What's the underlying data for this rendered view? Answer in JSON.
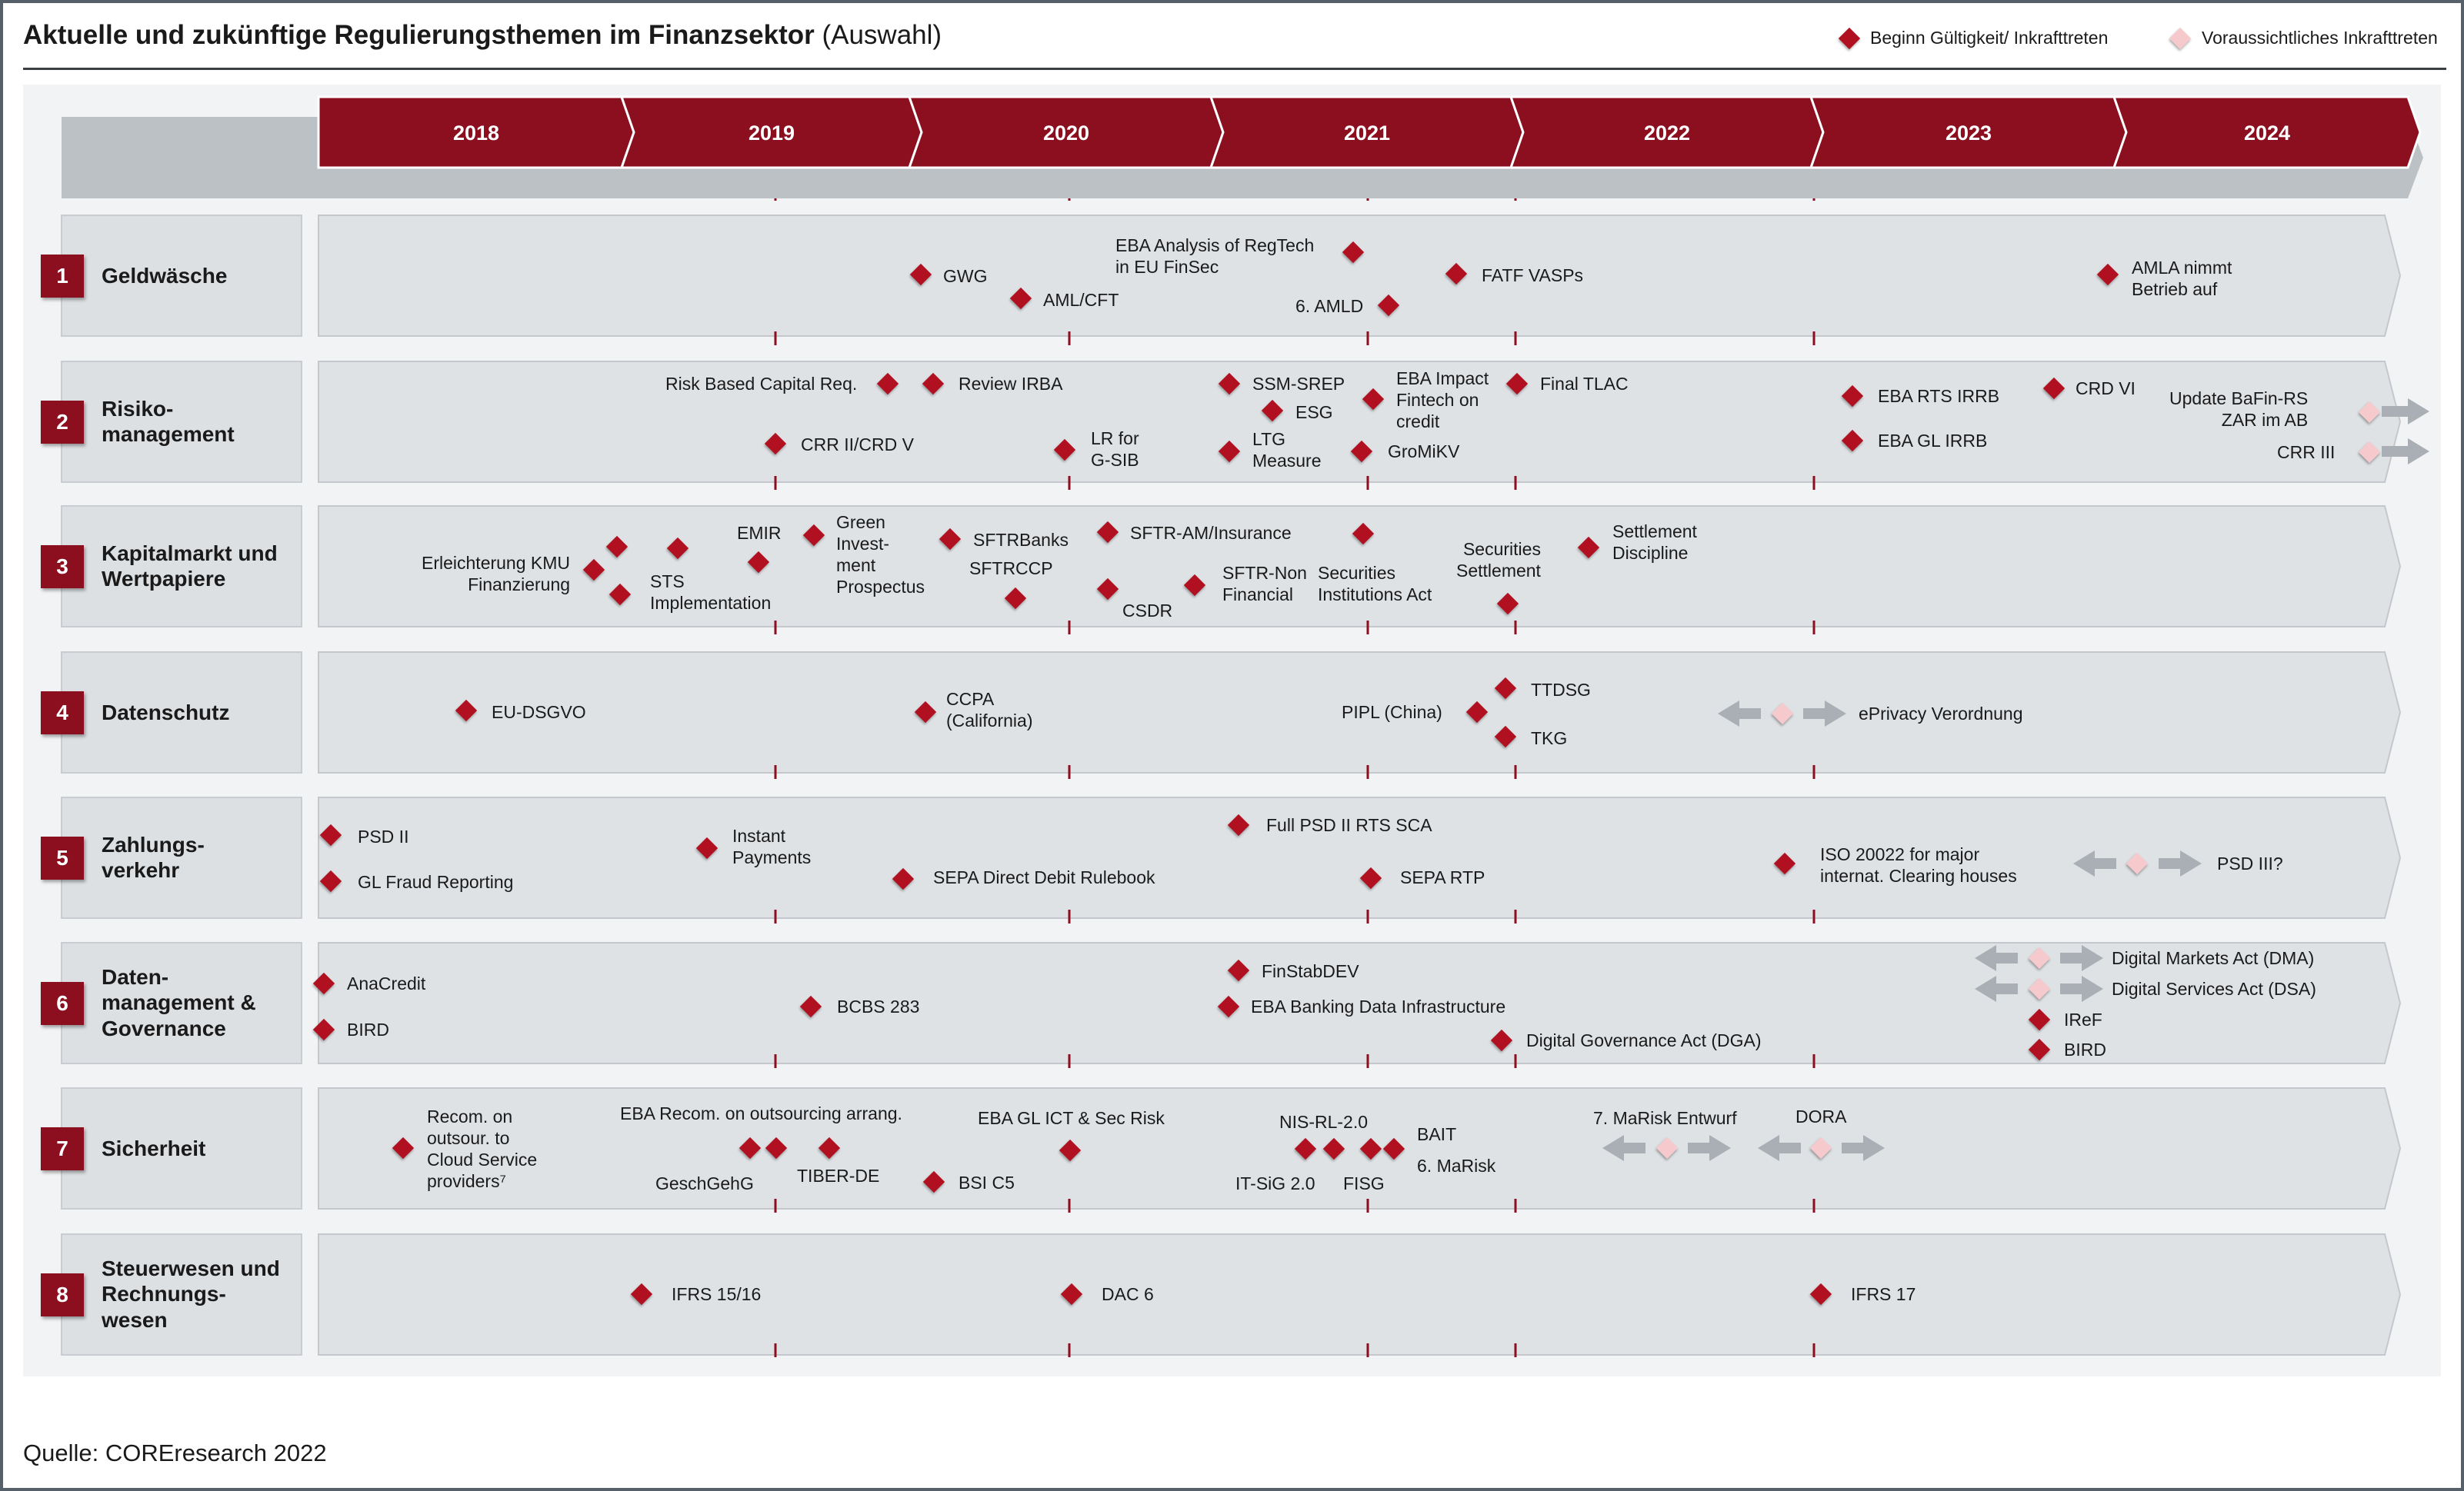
{
  "title": {
    "bold": "Aktuelle und zukünftige Regulierungsthemen im Finanzsektor",
    "normal": "(Auswahl)"
  },
  "legend": {
    "start": "Beginn Gültigkeit/ Inkrafttreten",
    "expected": "Voraussichtliches Inkrafttreten"
  },
  "colors": {
    "accent": "#8b0f1e",
    "diamond": "#b0101f",
    "diamond_light": "#f6c9cd",
    "lane": "#dde0e3",
    "arrow": "#a9afb5"
  },
  "years": [
    "2018",
    "2019",
    "2020",
    "2021",
    "2022",
    "2023",
    "2024"
  ],
  "categories": [
    {
      "num": "1",
      "label": "Geldwäsche"
    },
    {
      "num": "2",
      "label": "Risiko-\nmanagement"
    },
    {
      "num": "3",
      "label": "Kapitalmarkt und\nWertpapiere"
    },
    {
      "num": "4",
      "label": "Datenschutz"
    },
    {
      "num": "5",
      "label": "Zahlungs-\nverkehr"
    },
    {
      "num": "6",
      "label": "Daten-\nmanagement &\nGovernance"
    },
    {
      "num": "7",
      "label": "Sicherheit"
    },
    {
      "num": "8",
      "label": "Steuerwesen und\nRechnungs-\nwesen"
    }
  ],
  "events": {
    "geldwaesche": [
      "GWG",
      "AML/CFT",
      "EBA Analysis of RegTech\nin EU FinSec",
      "6. AMLD",
      "FATF VASPs",
      "AMLA nimmt\nBetrieb auf"
    ],
    "risiko": [
      "Risk Based Capital Req.",
      "Review IRBA",
      "CRR II/CRD V",
      "LR for\nG-SIB",
      "SSM-SREP",
      "ESG",
      "LTG\nMeasure",
      "EBA Impact\nFintech on\ncredit",
      "GroMiKV",
      "Final TLAC",
      "EBA RTS IRRB",
      "EBA GL IRRB",
      "CRD VI",
      "Update BaFin-RS\nZAR im AB",
      "CRR III"
    ],
    "kapitalmarkt": [
      "Erleichterung KMU\nFinanzierung",
      "STS\nImplementation",
      "EMIR",
      "Green\nInvest-\nment\nProspectus",
      "SFTRBanks",
      "SFTRCCP",
      "SFTR-AM/Insurance",
      "CSDR",
      "SFTR-Non\nFinancial",
      "Securities\nInstitutions Act",
      "Securities\nSettlement",
      "Settlement\nDiscipline"
    ],
    "datenschutz": [
      "EU-DSGVO",
      "CCPA\n(California)",
      "PIPL (China)",
      "TTDSG",
      "TKG",
      "ePrivacy Verordnung"
    ],
    "zahlung": [
      "PSD II",
      "GL Fraud Reporting",
      "Instant\nPayments",
      "SEPA Direct Debit Rulebook",
      "Full PSD II RTS SCA",
      "SEPA RTP",
      "ISO 20022 for major\ninternat. Clearing houses",
      "PSD III?"
    ],
    "datenmgmt": [
      "AnaCredit",
      "BIRD",
      "BCBS 283",
      "FinStabDEV",
      "EBA Banking Data Infrastructure",
      "Digital Governance Act (DGA)",
      "Digital Markets Act (DMA)",
      "Digital Services Act (DSA)",
      "IReF",
      "BIRD"
    ],
    "sicherheit": [
      "Recom. on\noutsour. to\nCloud Service\nproviders⁷",
      "EBA Recom. on outsourcing arrang.",
      "GeschGehG",
      "TIBER-DE",
      "BSI C5",
      "EBA GL ICT & Sec Risk",
      "NIS-RL-2.0",
      "IT-SiG 2.0",
      "FISG",
      "BAIT",
      "6. MaRisk",
      "7. MaRisk Entwurf",
      "DORA"
    ],
    "steuer": [
      "IFRS 15/16",
      "DAC 6",
      "IFRS 17"
    ]
  },
  "source": "Quelle: COREresearch 2022"
}
